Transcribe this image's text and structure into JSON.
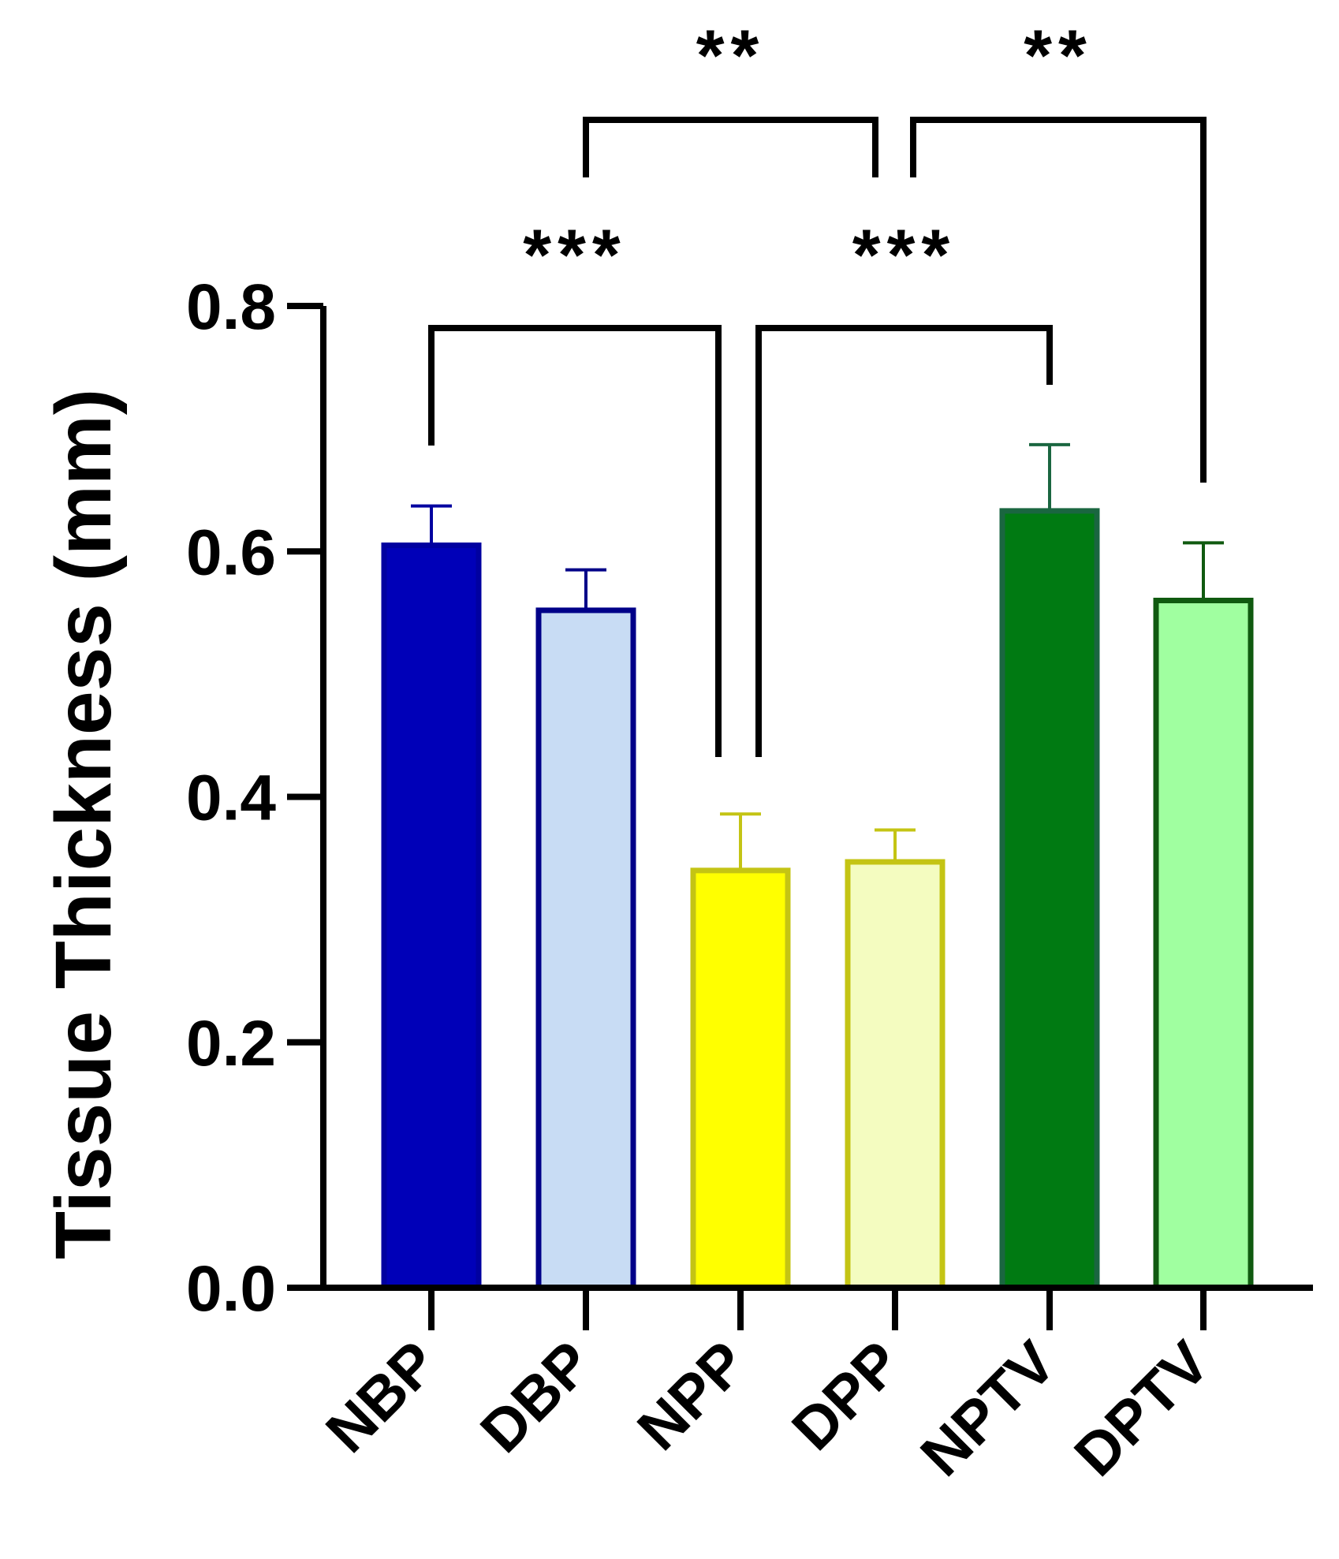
{
  "chart_data": {
    "type": "bar",
    "title": "",
    "xlabel": "",
    "ylabel": "Tissue Thickness (mm)",
    "ylim": [
      0,
      0.8
    ],
    "yticks": [
      "0.0",
      "0.2",
      "0.4",
      "0.6",
      "0.8"
    ],
    "yticks_values": [
      0,
      0.2,
      0.4,
      0.6,
      0.8
    ],
    "categories": [
      "NBP",
      "DBP",
      "NPP",
      "DPP",
      "NPTV",
      "DPTV"
    ],
    "values": [
      0.605,
      0.552,
      0.34,
      0.347,
      0.633,
      0.56
    ],
    "error_upper": [
      0.032,
      0.033,
      0.046,
      0.026,
      0.054,
      0.047
    ],
    "bar_fill": [
      "#0000B8",
      "#C8DCF4",
      "#FFFF00",
      "#F4FCC0",
      "#007A12",
      "#A0FFA0"
    ],
    "bar_stroke": [
      "#0000A0",
      "#000088",
      "#C4C414",
      "#C4C414",
      "#1A6640",
      "#105A10"
    ],
    "significance": [
      {
        "from": "NBP",
        "to": "NPP",
        "label": "***"
      },
      {
        "from": "NPP",
        "to": "NPTV",
        "label": "***"
      },
      {
        "from": "DBP",
        "to": "DPP",
        "label": "**"
      },
      {
        "from": "DPP",
        "to": "DPTV",
        "label": "**"
      }
    ]
  }
}
